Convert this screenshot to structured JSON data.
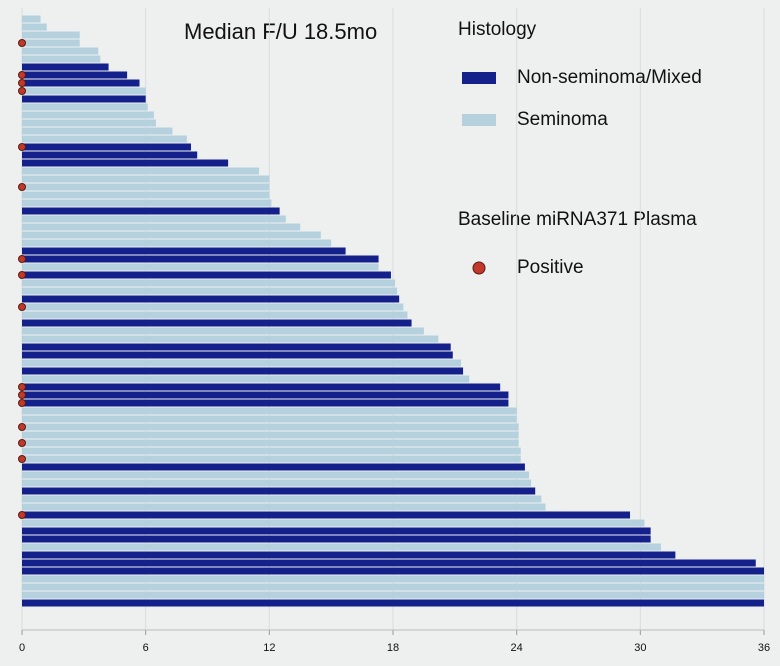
{
  "chart_data": {
    "type": "swimmer",
    "annotation": "Median F/U 18.5mo",
    "legend_titles": [
      "Histology",
      "Baseline miRNA371 Plasma"
    ],
    "xlim": [
      0,
      36
    ],
    "xticks": [
      0,
      6,
      12,
      18,
      24,
      30,
      36
    ],
    "grid": true,
    "series": [
      {
        "name": "Non-seminoma/Mixed",
        "color": "#14218a",
        "kind": "bar",
        "legend_group": 0,
        "values": [
          null,
          null,
          null,
          null,
          null,
          null,
          4.2,
          5.1,
          5.7,
          null,
          6.0,
          null,
          null,
          null,
          null,
          null,
          8.2,
          8.5,
          10.0,
          null,
          null,
          null,
          null,
          null,
          12.5,
          null,
          null,
          null,
          null,
          15.7,
          17.3,
          null,
          17.9,
          null,
          null,
          18.3,
          null,
          null,
          18.9,
          null,
          null,
          20.8,
          20.9,
          null,
          21.4,
          null,
          23.2,
          23.6,
          23.6,
          null,
          null,
          null,
          null,
          null,
          null,
          null,
          24.4,
          null,
          null,
          24.9,
          null,
          null,
          29.5,
          null,
          30.5,
          30.5,
          null,
          31.7,
          35.6,
          36.0,
          null,
          null,
          null,
          36.0
        ]
      },
      {
        "name": "Seminoma",
        "color": "#b6d1de",
        "kind": "bar",
        "legend_group": 0,
        "values": [
          0.9,
          1.2,
          2.8,
          2.8,
          3.7,
          3.8,
          null,
          null,
          null,
          6.0,
          null,
          6.1,
          6.4,
          6.5,
          7.3,
          8.0,
          null,
          null,
          null,
          11.5,
          12.0,
          12.0,
          12.0,
          12.1,
          null,
          12.8,
          13.5,
          14.5,
          15.0,
          null,
          null,
          17.3,
          null,
          18.1,
          18.2,
          null,
          18.5,
          18.7,
          null,
          19.5,
          20.2,
          null,
          null,
          21.3,
          null,
          21.7,
          null,
          null,
          null,
          24.0,
          24.0,
          24.1,
          24.1,
          24.1,
          24.2,
          24.2,
          null,
          24.6,
          24.7,
          null,
          25.2,
          25.4,
          null,
          30.2,
          null,
          null,
          31.0,
          null,
          null,
          null,
          36.0,
          36.0,
          36.0,
          null
        ]
      },
      {
        "name": "Positive",
        "color": "#c0392b",
        "kind": "dot",
        "legend_group": 1,
        "values": [
          null,
          null,
          null,
          0,
          null,
          null,
          null,
          0,
          0,
          0,
          null,
          null,
          null,
          null,
          null,
          null,
          0,
          null,
          null,
          null,
          null,
          0,
          null,
          null,
          null,
          null,
          null,
          null,
          null,
          null,
          0,
          null,
          0,
          null,
          null,
          null,
          0,
          null,
          null,
          null,
          null,
          null,
          null,
          null,
          null,
          null,
          0,
          0,
          0,
          null,
          null,
          0,
          null,
          0,
          null,
          0,
          null,
          null,
          null,
          null,
          null,
          null,
          0,
          null,
          null,
          null,
          null,
          null,
          null,
          null,
          null,
          null,
          null,
          null
        ]
      }
    ]
  }
}
